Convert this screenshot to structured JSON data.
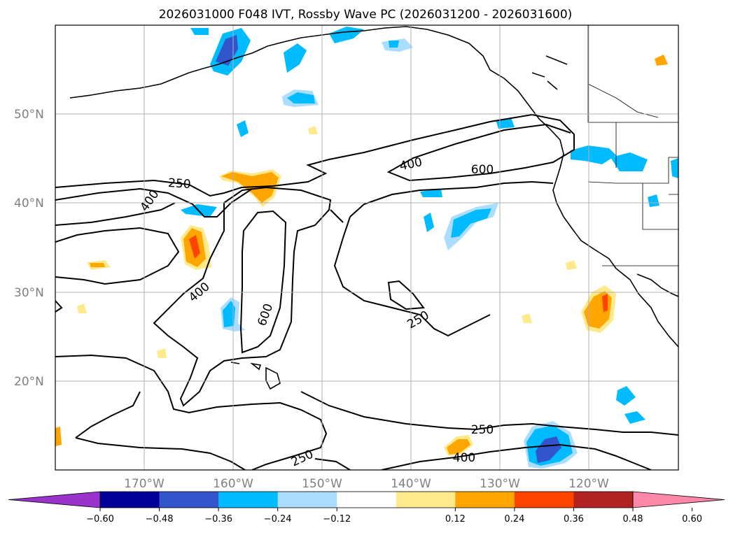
{
  "title": "2026031000 F048 IVT, Rossby Wave PC (2026031200 - 2026031600)",
  "map": {
    "lon_range": [
      -180,
      -110
    ],
    "lat_range": [
      10,
      60
    ],
    "grid": true,
    "lat_labels": [
      "50°N",
      "40°N",
      "30°N",
      "20°N"
    ],
    "lon_labels": [
      "170°W",
      "160°W",
      "150°W",
      "140°W",
      "130°W",
      "120°W"
    ],
    "contour_labels": [
      "250",
      "400",
      "400",
      "600",
      "400",
      "600",
      "250",
      "250",
      "400",
      "250"
    ]
  },
  "colorbar": {
    "ticks": [
      "−0.60",
      "−0.48",
      "−0.36",
      "−0.24",
      "−0.12",
      "0.12",
      "0.24",
      "0.36",
      "0.48",
      "0.60"
    ],
    "colors": [
      "#9933cc",
      "#000099",
      "#3355cc",
      "#00bbff",
      "#aaddff",
      "#ffffff",
      "#ffe98a",
      "#ffa500",
      "#ff4400",
      "#b22222",
      "#ff88aa"
    ],
    "extend": "both"
  }
}
